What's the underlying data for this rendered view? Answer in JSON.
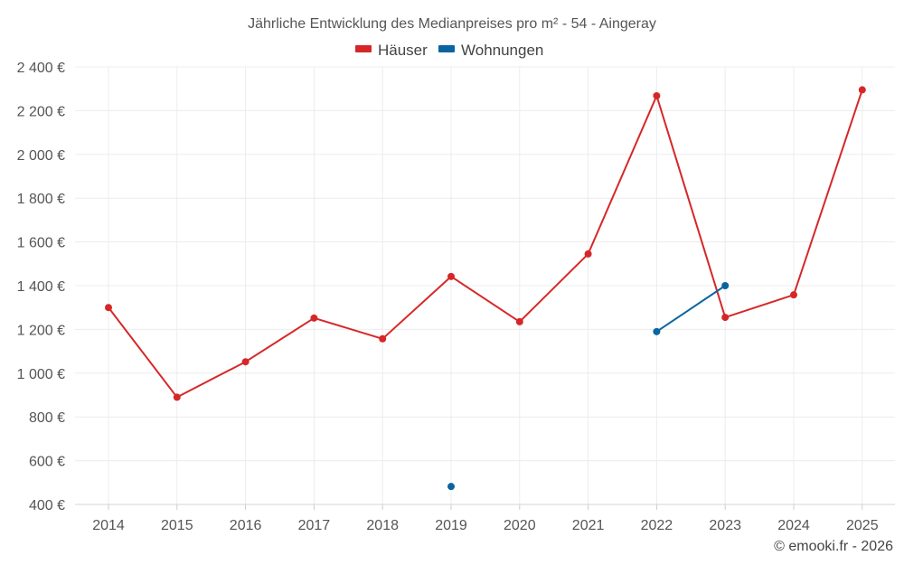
{
  "chart_data": {
    "type": "line",
    "title": "Jährliche Entwicklung des Medianpreises pro m² - 54 - Aingeray",
    "categories": [
      "2014",
      "2015",
      "2016",
      "2017",
      "2018",
      "2019",
      "2020",
      "2021",
      "2022",
      "2023",
      "2024",
      "2025"
    ],
    "y_ticks": [
      400,
      600,
      800,
      1000,
      1200,
      1400,
      1600,
      1800,
      2000,
      2200,
      2400
    ],
    "y_tick_labels": [
      "400 €",
      "600 €",
      "800 €",
      "1 000 €",
      "1 200 €",
      "1 400 €",
      "1 600 €",
      "1 800 €",
      "2 000 €",
      "2 200 €",
      "2 400 €"
    ],
    "ylim": [
      400,
      2400
    ],
    "grid": true,
    "legend_position": "top-center",
    "series": [
      {
        "name": "Häuser",
        "color": "#d62728",
        "values": [
          1300,
          890,
          1052,
          1252,
          1157,
          1442,
          1235,
          1545,
          2268,
          1255,
          1358,
          2295
        ]
      },
      {
        "name": "Wohnungen",
        "color": "#0a64a0",
        "values": [
          null,
          null,
          null,
          null,
          null,
          482,
          null,
          null,
          1190,
          1400,
          null,
          null
        ]
      }
    ],
    "credit": "© emooki.fr - 2026"
  }
}
